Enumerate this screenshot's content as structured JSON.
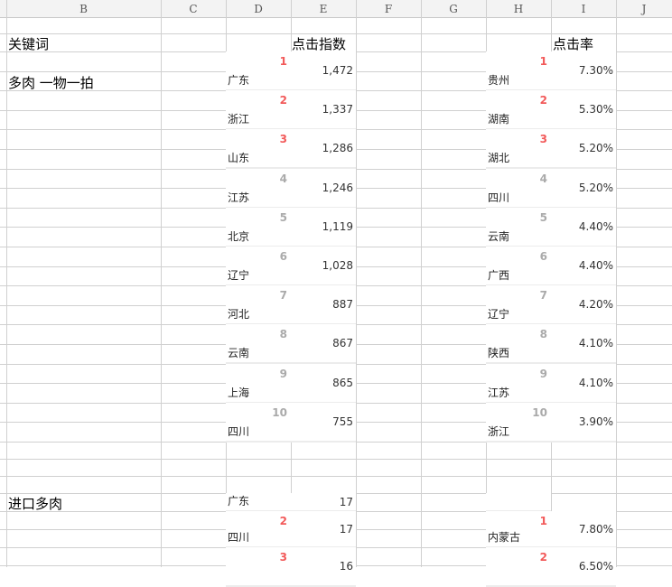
{
  "columns": [
    "B",
    "C",
    "D",
    "E",
    "F",
    "G",
    "H",
    "I",
    "J"
  ],
  "headers": {
    "keyword": "关键词",
    "click_index": "点击指数",
    "click_rate": "点击率"
  },
  "colors": {
    "top_rank": "#f25a5a",
    "other_rank": "#aaaaaa"
  },
  "sections": [
    {
      "keyword": "多肉 一物一拍",
      "index_list": [
        {
          "rank": "1",
          "province": "广东",
          "value": "1,472"
        },
        {
          "rank": "2",
          "province": "浙江",
          "value": "1,337"
        },
        {
          "rank": "3",
          "province": "山东",
          "value": "1,286"
        },
        {
          "rank": "4",
          "province": "江苏",
          "value": "1,246"
        },
        {
          "rank": "5",
          "province": "北京",
          "value": "1,119"
        },
        {
          "rank": "6",
          "province": "辽宁",
          "value": "1,028"
        },
        {
          "rank": "7",
          "province": "河北",
          "value": "887"
        },
        {
          "rank": "8",
          "province": "云南",
          "value": "867"
        },
        {
          "rank": "9",
          "province": "上海",
          "value": "865"
        },
        {
          "rank": "10",
          "province": "四川",
          "value": "755"
        }
      ],
      "rate_list": [
        {
          "rank": "1",
          "province": "贵州",
          "value": "7.30%"
        },
        {
          "rank": "2",
          "province": "湖南",
          "value": "5.30%"
        },
        {
          "rank": "3",
          "province": "湖北",
          "value": "5.20%"
        },
        {
          "rank": "4",
          "province": "四川",
          "value": "5.20%"
        },
        {
          "rank": "5",
          "province": "云南",
          "value": "4.40%"
        },
        {
          "rank": "6",
          "province": "广西",
          "value": "4.40%"
        },
        {
          "rank": "7",
          "province": "辽宁",
          "value": "4.20%"
        },
        {
          "rank": "8",
          "province": "陕西",
          "value": "4.10%"
        },
        {
          "rank": "9",
          "province": "江苏",
          "value": "4.10%"
        },
        {
          "rank": "10",
          "province": "浙江",
          "value": "3.90%"
        }
      ]
    },
    {
      "keyword": "进口多肉",
      "index_list": [
        {
          "rank": "",
          "province": "广东",
          "value": "17"
        },
        {
          "rank": "2",
          "province": "四川",
          "value": "17"
        },
        {
          "rank": "3",
          "province": "",
          "value": "16"
        }
      ],
      "rate_list": [
        {
          "rank": "1",
          "province": "内蒙古",
          "value": "7.80%"
        },
        {
          "rank": "2",
          "province": "",
          "value": "6.50%"
        }
      ]
    }
  ]
}
